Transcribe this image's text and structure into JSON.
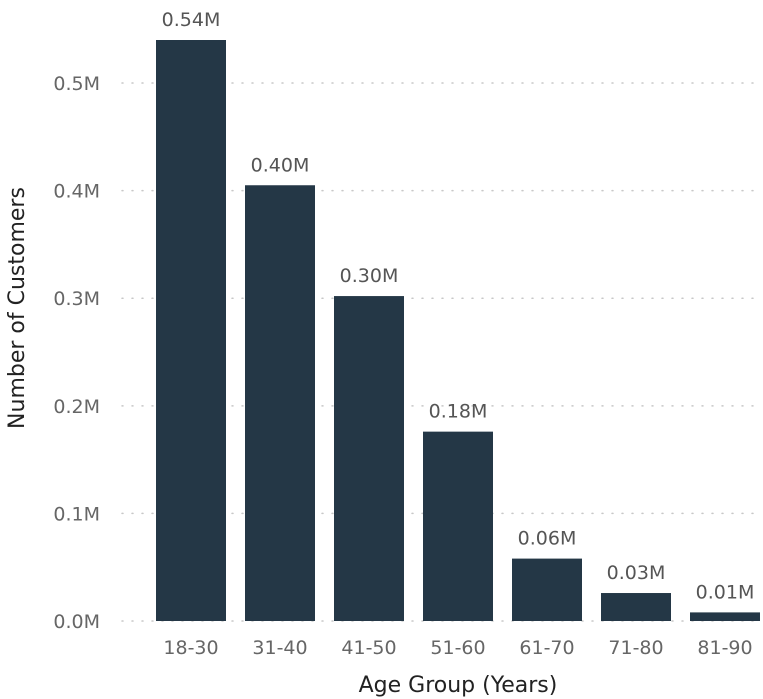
{
  "chart_data": {
    "type": "bar",
    "title": "",
    "xlabel": "Age Group (Years)",
    "ylabel": "Number of Customers",
    "categories": [
      "18-30",
      "31-40",
      "41-50",
      "51-60",
      "61-70",
      "71-80",
      "81-90"
    ],
    "values": [
      540000,
      405000,
      302000,
      176000,
      58000,
      26000,
      8000
    ],
    "data_labels": [
      "0.54M",
      "0.40M",
      "0.30M",
      "0.18M",
      "0.06M",
      "0.03M",
      "0.01M"
    ],
    "y_ticks": [
      0,
      100000,
      200000,
      300000,
      400000,
      500000
    ],
    "y_tick_labels": [
      "0.0M",
      "0.1M",
      "0.2M",
      "0.3M",
      "0.4M",
      "0.5M"
    ],
    "ylim": [
      0,
      540000
    ],
    "grid": true,
    "legend": "none",
    "bar_color": "#243746"
  }
}
